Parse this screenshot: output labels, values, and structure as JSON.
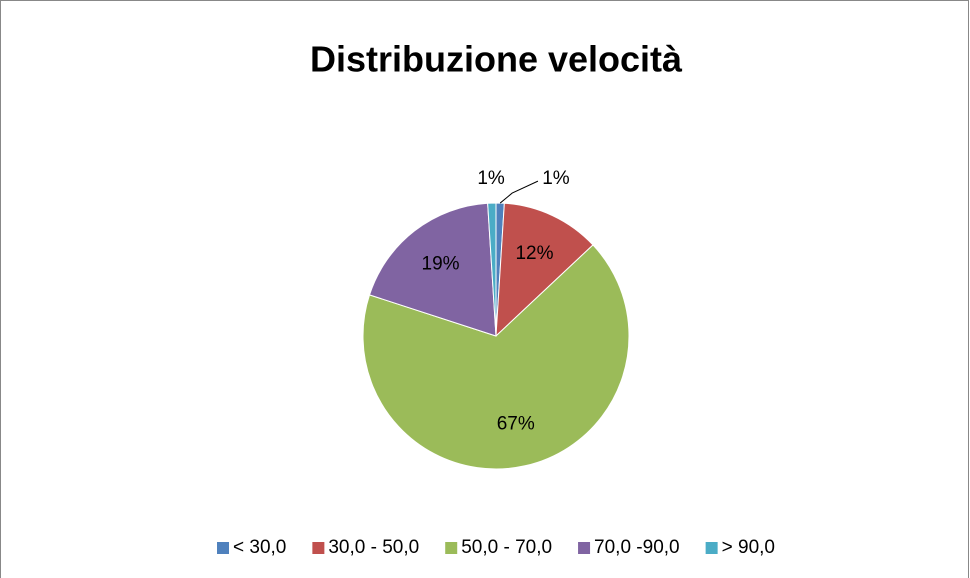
{
  "chart_data": {
    "type": "pie",
    "title": "Distribuzione velocità",
    "categories": [
      "< 30,0",
      "30,0 - 50,0",
      "50,0 - 70,0",
      "70,0 -90,0",
      "> 90,0"
    ],
    "values": [
      1,
      12,
      67,
      19,
      1
    ],
    "value_labels": [
      "1%",
      "12%",
      "67%",
      "19%",
      "1%"
    ],
    "colors": [
      "#4f81bd",
      "#c0504d",
      "#9bbb59",
      "#8064a2",
      "#4bacc6"
    ],
    "legend": "bottom"
  }
}
